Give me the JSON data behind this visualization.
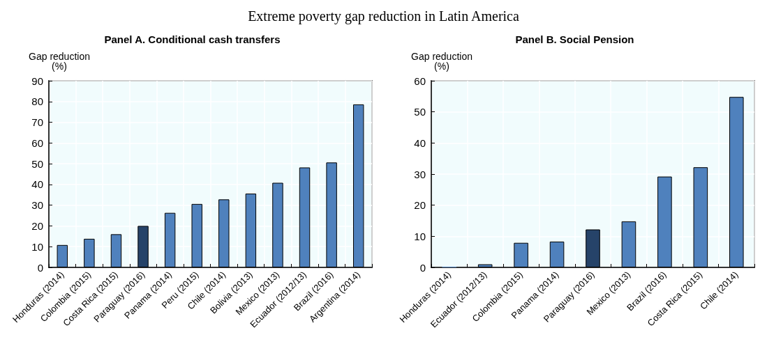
{
  "chart_data": [
    {
      "type": "bar",
      "title": "Panel A. Conditional cash transfers",
      "ylabel": "Gap reduction\n(%)",
      "annotations": [
        "Extreme poverty gap reduction in Latin America"
      ],
      "categories": [
        "Honduras (2014)",
        "Colombia (2015)",
        "Costa Rica (2015)",
        "Paraguay (2016)",
        "Panama (2014)",
        "Peru (2015)",
        "Chile (2014)",
        "Bolivia (2013)",
        "Mexico (2013)",
        "Ecuador (2012/13)",
        "Brazil (2016)",
        "Argentina (2014)"
      ],
      "values": [
        10.8,
        13.8,
        16,
        20,
        26.3,
        30.6,
        32.8,
        35.6,
        40.8,
        48.2,
        50.6,
        78.6
      ],
      "colors": [
        "#4f81bd",
        "#4f81bd",
        "#4f81bd",
        "#264369",
        "#4f81bd",
        "#4f81bd",
        "#4f81bd",
        "#4f81bd",
        "#4f81bd",
        "#4f81bd",
        "#4f81bd",
        "#4f81bd"
      ],
      "ylim": [
        0,
        90
      ],
      "yticks": [
        0,
        10,
        20,
        30,
        40,
        50,
        60,
        70,
        80,
        90
      ],
      "grid": true
    },
    {
      "type": "bar",
      "title": "Panel B. Social Pension",
      "ylabel": "Gap reduction\n(%)",
      "categories": [
        "Honduras (2014)",
        "Ecuador (2012/13)",
        "Colombia (2015)",
        "Panama (2014)",
        "Paraguay (2016)",
        "Mexico (2013)",
        "Brazil (2016)",
        "Costa Rica (2015)",
        "Chile (2014)"
      ],
      "values": [
        0.2,
        1,
        7.9,
        8.3,
        12.2,
        14.8,
        29.2,
        32.2,
        54.8
      ],
      "colors": [
        "#4f81bd",
        "#4f81bd",
        "#4f81bd",
        "#4f81bd",
        "#264369",
        "#4f81bd",
        "#4f81bd",
        "#4f81bd",
        "#4f81bd"
      ],
      "ylim": [
        0,
        60
      ],
      "yticks": [
        0,
        10,
        20,
        30,
        40,
        50,
        60
      ],
      "grid": true
    }
  ]
}
